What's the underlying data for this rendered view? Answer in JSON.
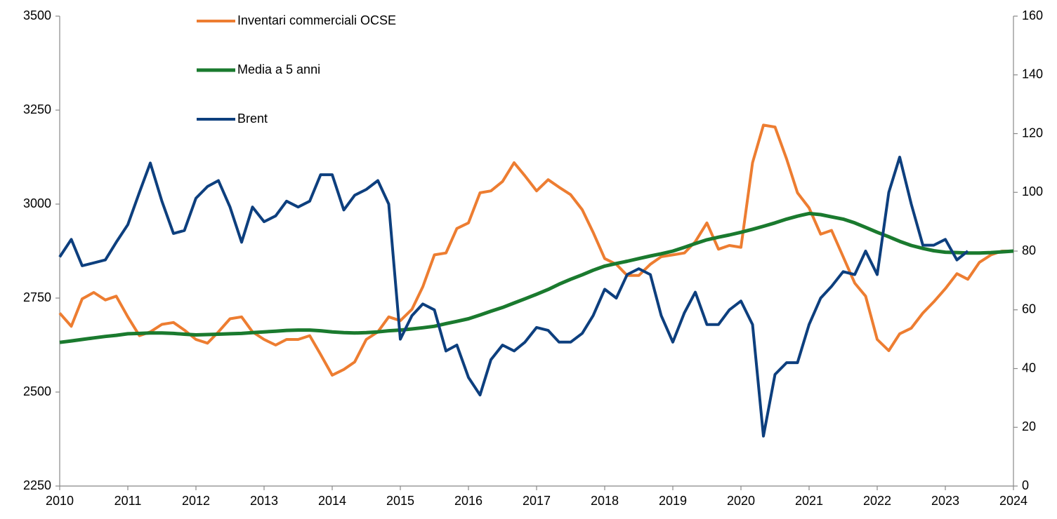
{
  "chart_data": {
    "type": "line",
    "x": [
      2010,
      2010.17,
      2010.33,
      2010.5,
      2010.67,
      2010.83,
      2011,
      2011.17,
      2011.33,
      2011.5,
      2011.67,
      2011.83,
      2012,
      2012.17,
      2012.33,
      2012.5,
      2012.67,
      2012.83,
      2013,
      2013.17,
      2013.33,
      2013.5,
      2013.67,
      2013.83,
      2014,
      2014.17,
      2014.33,
      2014.5,
      2014.67,
      2014.83,
      2015,
      2015.17,
      2015.33,
      2015.5,
      2015.67,
      2015.83,
      2016,
      2016.17,
      2016.33,
      2016.5,
      2016.67,
      2016.83,
      2017,
      2017.17,
      2017.33,
      2017.5,
      2017.67,
      2017.83,
      2018,
      2018.17,
      2018.33,
      2018.5,
      2018.67,
      2018.83,
      2019,
      2019.17,
      2019.33,
      2019.5,
      2019.67,
      2019.83,
      2020,
      2020.17,
      2020.33,
      2020.5,
      2020.67,
      2020.83,
      2021,
      2021.17,
      2021.33,
      2021.5,
      2021.67,
      2021.83,
      2022,
      2022.17,
      2022.33,
      2022.5,
      2022.67,
      2022.83,
      2023,
      2023.17,
      2023.33,
      2023.5,
      2023.67,
      2023.83,
      2024
    ],
    "series": [
      {
        "name": "Inventari commerciali OCSE",
        "color": "#ed7d31",
        "axis": "y",
        "values": [
          2710,
          2675,
          2748,
          2765,
          2745,
          2755,
          2700,
          2650,
          2660,
          2680,
          2685,
          2665,
          2640,
          2630,
          2660,
          2695,
          2700,
          2660,
          2640,
          2625,
          2640,
          2640,
          2650,
          2600,
          2545,
          2560,
          2580,
          2640,
          2660,
          2700,
          2690,
          2720,
          2780,
          2865,
          2870,
          2935,
          2950,
          3030,
          3035,
          3060,
          3110,
          3075,
          3035,
          3065,
          3045,
          3025,
          2985,
          2925,
          2855,
          2840,
          2810,
          2810,
          2840,
          2860,
          2865,
          2870,
          2900,
          2950,
          2880,
          2890,
          2885,
          3110,
          3210,
          3205,
          3120,
          3030,
          2990,
          2920,
          2930,
          2860,
          2790,
          2755,
          2640,
          2610,
          2655,
          2670,
          2710,
          2740,
          2775,
          2815,
          2800,
          2845,
          2865,
          2875,
          2875
        ]
      },
      {
        "name": "Media a 5 anni",
        "color": "#1a7a2e",
        "axis": "y",
        "values": [
          2632,
          2636,
          2640,
          2644,
          2648,
          2651,
          2655,
          2656,
          2657,
          2657,
          2656,
          2654,
          2652,
          2653,
          2654,
          2655,
          2656,
          2658,
          2660,
          2662,
          2664,
          2665,
          2665,
          2663,
          2660,
          2658,
          2657,
          2658,
          2660,
          2663,
          2665,
          2668,
          2671,
          2675,
          2682,
          2688,
          2695,
          2705,
          2715,
          2725,
          2737,
          2748,
          2760,
          2773,
          2787,
          2800,
          2812,
          2824,
          2835,
          2842,
          2848,
          2855,
          2862,
          2868,
          2875,
          2885,
          2895,
          2905,
          2912,
          2918,
          2925,
          2933,
          2941,
          2950,
          2960,
          2968,
          2975,
          2972,
          2966,
          2960,
          2950,
          2938,
          2925,
          2913,
          2901,
          2890,
          2882,
          2876,
          2872,
          2871,
          2870,
          2870,
          2871,
          2873,
          2875
        ]
      },
      {
        "name": "Brent",
        "color": "#0d3f7e",
        "axis": "y2",
        "values": [
          78,
          84,
          75,
          76,
          77,
          83,
          89,
          100,
          110,
          97,
          86,
          87,
          98,
          102,
          104,
          95,
          83,
          95,
          90,
          92,
          97,
          95,
          97,
          106,
          106,
          94,
          99,
          101,
          104,
          96,
          50,
          58,
          62,
          60,
          46,
          48,
          37,
          31,
          43,
          48,
          46,
          49,
          54,
          53,
          49,
          49,
          52,
          58,
          67,
          64,
          72,
          74,
          72,
          58,
          49,
          59,
          66,
          55,
          55,
          60,
          63,
          55,
          17,
          38,
          42,
          42,
          55,
          64,
          68,
          73,
          72,
          80,
          72,
          100,
          112,
          96,
          82,
          82,
          84,
          77,
          80,
          null,
          null,
          null,
          null
        ]
      }
    ],
    "xlim": [
      2010,
      2024
    ],
    "xticks": [
      2010,
      2011,
      2012,
      2013,
      2014,
      2015,
      2016,
      2017,
      2018,
      2019,
      2020,
      2021,
      2022,
      2023,
      2024
    ],
    "ylim": [
      2250,
      3500
    ],
    "yticks": [
      2250,
      2500,
      2750,
      3000,
      3250,
      3500
    ],
    "y2lim": [
      0,
      160
    ],
    "y2ticks": [
      0,
      20,
      40,
      60,
      80,
      100,
      120,
      140,
      160
    ],
    "grid": false
  }
}
